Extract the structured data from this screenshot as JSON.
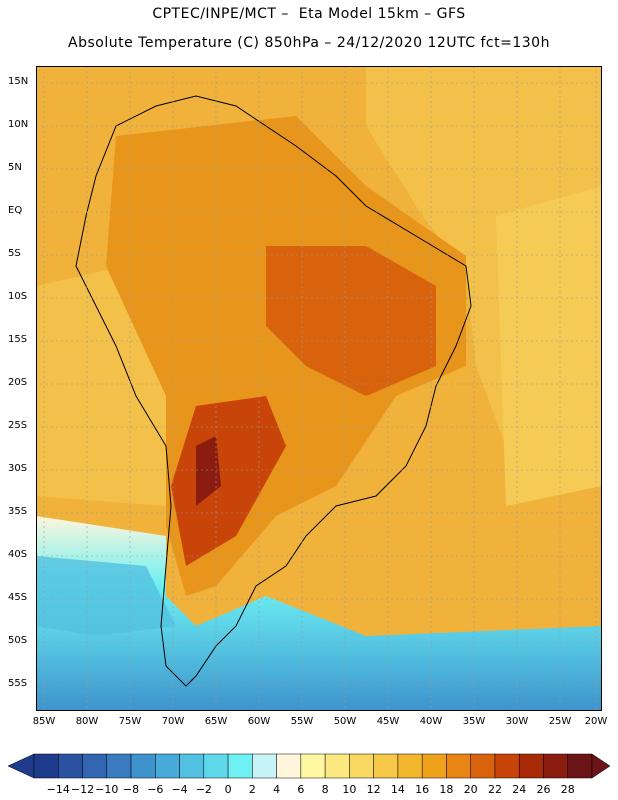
{
  "header": {
    "line1": "CPTEC/INPE/MCT –  Eta Model 15km – GFS",
    "line2": "Absolute Temperature (C) 850hPa – 24/12/2020 12UTC fct=130h"
  },
  "map": {
    "lat_labels": [
      "15N",
      "10N",
      "5N",
      "EQ",
      "5S",
      "10S",
      "15S",
      "20S",
      "25S",
      "30S",
      "35S",
      "40S",
      "45S",
      "50S",
      "55S"
    ],
    "lon_labels": [
      "85W",
      "80W",
      "75W",
      "70W",
      "65W",
      "60W",
      "55W",
      "50W",
      "45W",
      "40W",
      "35W",
      "30W",
      "25W",
      "20W"
    ],
    "grid": "dashed",
    "background_color": "#f0c23a"
  },
  "colorbar": {
    "labels": [
      "-14",
      "-12",
      "-10",
      "-8",
      "-6",
      "-4",
      "-2",
      "0",
      "2",
      "4",
      "6",
      "8",
      "10",
      "12",
      "14",
      "16",
      "18",
      "20",
      "22",
      "24",
      "26",
      "28"
    ],
    "colors": [
      "#1f3c8c",
      "#2a52a0",
      "#3266b0",
      "#3a7cbf",
      "#3f93cc",
      "#47aad8",
      "#52c0e0",
      "#5fd8ec",
      "#6ff0f2",
      "#c8f4f8",
      "#fff6dc",
      "#fff8a0",
      "#fbe880",
      "#f8d860",
      "#f5c848",
      "#f3b72e",
      "#eea21c",
      "#e88514",
      "#d9620c",
      "#c84408",
      "#a82a06",
      "#8a1c10",
      "#6a1418"
    ]
  }
}
